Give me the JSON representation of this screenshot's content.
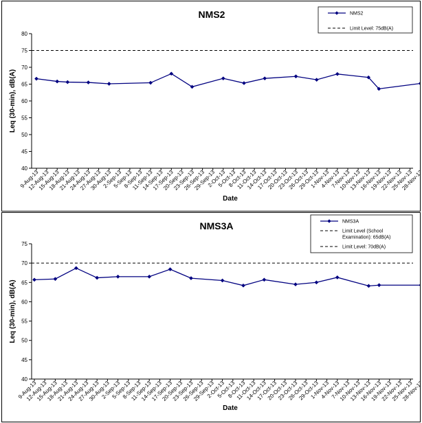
{
  "chart_data": [
    {
      "type": "line",
      "title": "NMS2",
      "xlabel": "Date",
      "ylabel": "Leq (30-min), dB(A)",
      "ylim": [
        40,
        80
      ],
      "yticks": [
        40,
        45,
        50,
        55,
        60,
        65,
        70,
        75,
        80
      ],
      "grid": false,
      "legend_position": "top-right",
      "categories": [
        "9-Aug-13",
        "12-Aug-13",
        "15-Aug-13",
        "18-Aug-13",
        "21-Aug-13",
        "24-Aug-13",
        "27-Aug-13",
        "30-Aug-13",
        "2-Sep-13",
        "5-Sep-13",
        "8-Sep-13",
        "11-Sep-13",
        "14-Sep-13",
        "17-Sep-13",
        "20-Sep-13",
        "23-Sep-13",
        "26-Sep-13",
        "29-Sep-13",
        "2-Oct-13",
        "5-Oct-13",
        "8-Oct-13",
        "11-Oct-13",
        "14-Oct-13",
        "17-Oct-13",
        "20-Oct-13",
        "23-Oct-13",
        "26-Oct-13",
        "29-Oct-13",
        "1-Nov-13",
        "4-Nov-13",
        "7-Nov-13",
        "10-Nov-13",
        "13-Nov-13",
        "16-Nov-13",
        "19-Nov-13",
        "22-Nov-13",
        "25-Nov-13",
        "28-Nov-13"
      ],
      "series": [
        {
          "name": "NMS2",
          "color": "#000080",
          "points": [
            {
              "x": "9-Aug-13",
              "y": 66.6
            },
            {
              "x": "15-Aug-13",
              "y": 65.8
            },
            {
              "x": "18-Aug-13",
              "y": 65.6
            },
            {
              "x": "24-Aug-13",
              "y": 65.5
            },
            {
              "x": "30-Aug-13",
              "y": 65.1
            },
            {
              "x": "11-Sep-13",
              "y": 65.4
            },
            {
              "x": "17-Sep-13",
              "y": 68.1
            },
            {
              "x": "23-Sep-13",
              "y": 64.2
            },
            {
              "x": "2-Oct-13",
              "y": 66.7
            },
            {
              "x": "8-Oct-13",
              "y": 65.3
            },
            {
              "x": "14-Oct-13",
              "y": 66.7
            },
            {
              "x": "23-Oct-13",
              "y": 67.3
            },
            {
              "x": "29-Oct-13",
              "y": 66.3
            },
            {
              "x": "4-Nov-13",
              "y": 68.0
            },
            {
              "x": "13-Nov-13",
              "y": 67.0
            },
            {
              "x": "16-Nov-13",
              "y": 63.6
            },
            {
              "x": "28-Nov-13",
              "y": 65.2
            }
          ]
        }
      ],
      "limits": [
        {
          "label": "Limit Level: 75dB(A)",
          "value": 75
        }
      ]
    },
    {
      "type": "line",
      "title": "NMS3A",
      "xlabel": "Date",
      "ylabel": "Leq (30-min), dB(A)",
      "ylim": [
        40,
        75
      ],
      "yticks": [
        40,
        45,
        50,
        55,
        60,
        65,
        70,
        75
      ],
      "grid": false,
      "legend_position": "top-right",
      "categories": [
        "9-Aug-13",
        "12-Aug-13",
        "15-Aug-13",
        "18-Aug-13",
        "21-Aug-13",
        "24-Aug-13",
        "27-Aug-13",
        "30-Aug-13",
        "2-Sep-13",
        "5-Sep-13",
        "8-Sep-13",
        "11-Sep-13",
        "14-Sep-13",
        "17-Sep-13",
        "20-Sep-13",
        "23-Sep-13",
        "26-Sep-13",
        "29-Sep-13",
        "2-Oct-13",
        "5-Oct-13",
        "8-Oct-13",
        "11-Oct-13",
        "14-Oct-13",
        "17-Oct-13",
        "20-Oct-13",
        "23-Oct-13",
        "26-Oct-13",
        "29-Oct-13",
        "1-Nov-13",
        "4-Nov-13",
        "7-Nov-13",
        "10-Nov-13",
        "13-Nov-13",
        "16-Nov-13",
        "19-Nov-13",
        "22-Nov-13",
        "25-Nov-13",
        "28-Nov-13"
      ],
      "series": [
        {
          "name": "NMS3A",
          "color": "#000080",
          "points": [
            {
              "x": "9-Aug-13",
              "y": 65.7
            },
            {
              "x": "15-Aug-13",
              "y": 65.9
            },
            {
              "x": "21-Aug-13",
              "y": 68.7
            },
            {
              "x": "27-Aug-13",
              "y": 66.2
            },
            {
              "x": "2-Sep-13",
              "y": 66.5
            },
            {
              "x": "11-Sep-13",
              "y": 66.5
            },
            {
              "x": "17-Sep-13",
              "y": 68.4
            },
            {
              "x": "23-Sep-13",
              "y": 66.1
            },
            {
              "x": "2-Oct-13",
              "y": 65.5
            },
            {
              "x": "8-Oct-13",
              "y": 64.2
            },
            {
              "x": "14-Oct-13",
              "y": 65.7
            },
            {
              "x": "23-Oct-13",
              "y": 64.5
            },
            {
              "x": "29-Oct-13",
              "y": 65.0
            },
            {
              "x": "4-Nov-13",
              "y": 66.3
            },
            {
              "x": "13-Nov-13",
              "y": 64.1
            },
            {
              "x": "16-Nov-13",
              "y": 64.3
            },
            {
              "x": "28-Nov-13",
              "y": 64.3
            }
          ]
        }
      ],
      "limits": [
        {
          "label": "Limit Level (School Examination): 65dB(A)",
          "label_lines": [
            "Limit Level (School",
            "Examination): 65dB(A)"
          ],
          "value": 65,
          "plotted": false
        },
        {
          "label": "Limit Level: 70dB(A)",
          "value": 70
        }
      ]
    }
  ]
}
